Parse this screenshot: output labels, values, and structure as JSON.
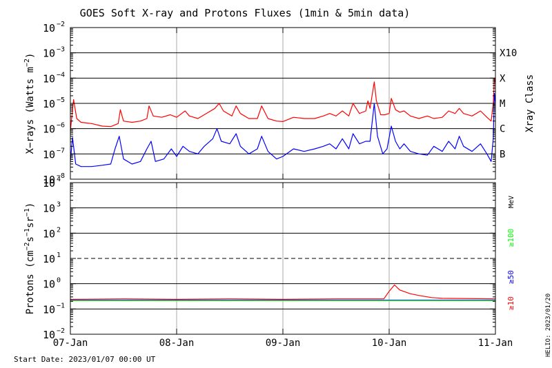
{
  "chart_data": {
    "type": "line",
    "title": "GOES Soft X-ray and Protons Fluxes   (1min & 5min data)",
    "start_date_label": "Start Date: 2023/01/07 00:00 UT",
    "credit_label": "HELIO: 2023/01/20",
    "x_ticks": [
      "07-Jan",
      "08-Jan",
      "09-Jan",
      "10-Jan",
      "11-Jan"
    ],
    "x_range_days": [
      0,
      4
    ],
    "colors": {
      "xray_long": "#ff0000",
      "xray_short": "#0000ff",
      "p10": "#ff0000",
      "p50": "#0000ff",
      "p100": "#00ff00",
      "grid": "#000000",
      "vgrid": "#aaaaaa"
    },
    "panels": [
      {
        "name": "xray",
        "ylabel": "X-rays (Watts m^-2)",
        "ylabel_parts": {
          "main": "X−rays (Watts m",
          "sup": "−2",
          "tail": ")"
        },
        "yscale": "log",
        "ylim_exp": [
          -8,
          -2
        ],
        "yticks": [
          {
            "base": "10",
            "exp": "−8",
            "value": -8
          },
          {
            "base": "10",
            "exp": "−7",
            "value": -7
          },
          {
            "base": "10",
            "exp": "−6",
            "value": -6
          },
          {
            "base": "10",
            "exp": "−5",
            "value": -5
          },
          {
            "base": "10",
            "exp": "−4",
            "value": -4
          },
          {
            "base": "10",
            "exp": "−3",
            "value": -3
          },
          {
            "base": "10",
            "exp": "−2",
            "value": -2
          }
        ],
        "hlines_solid_exp": [
          -7,
          -6,
          -5,
          -4,
          -3
        ],
        "right_axis_title": "Xray Class",
        "right_labels": [
          {
            "text": "X10",
            "value": -3.0
          },
          {
            "text": "X",
            "value": -4.0
          },
          {
            "text": "M",
            "value": -5.0
          },
          {
            "text": "C",
            "value": -6.0
          },
          {
            "text": "B",
            "value": -7.0
          }
        ],
        "series": [
          {
            "name": "xray_long",
            "color": "#ff0000",
            "note": "points are [day offset from 07-Jan, log10 flux]",
            "points": [
              [
                0,
                -6.1
              ],
              [
                0.03,
                -4.85
              ],
              [
                0.06,
                -5.6
              ],
              [
                0.1,
                -5.75
              ],
              [
                0.2,
                -5.8
              ],
              [
                0.3,
                -5.9
              ],
              [
                0.38,
                -5.92
              ],
              [
                0.45,
                -5.8
              ],
              [
                0.47,
                -5.25
              ],
              [
                0.5,
                -5.7
              ],
              [
                0.58,
                -5.75
              ],
              [
                0.66,
                -5.7
              ],
              [
                0.72,
                -5.6
              ],
              [
                0.74,
                -5.1
              ],
              [
                0.78,
                -5.5
              ],
              [
                0.86,
                -5.55
              ],
              [
                0.94,
                -5.45
              ],
              [
                1.0,
                -5.55
              ],
              [
                1.08,
                -5.3
              ],
              [
                1.12,
                -5.5
              ],
              [
                1.2,
                -5.6
              ],
              [
                1.26,
                -5.45
              ],
              [
                1.36,
                -5.2
              ],
              [
                1.4,
                -5.0
              ],
              [
                1.44,
                -5.3
              ],
              [
                1.52,
                -5.5
              ],
              [
                1.56,
                -5.1
              ],
              [
                1.6,
                -5.4
              ],
              [
                1.68,
                -5.6
              ],
              [
                1.76,
                -5.6
              ],
              [
                1.8,
                -5.1
              ],
              [
                1.86,
                -5.6
              ],
              [
                1.94,
                -5.7
              ],
              [
                2.0,
                -5.72
              ],
              [
                2.1,
                -5.55
              ],
              [
                2.2,
                -5.6
              ],
              [
                2.3,
                -5.6
              ],
              [
                2.38,
                -5.5
              ],
              [
                2.44,
                -5.4
              ],
              [
                2.5,
                -5.5
              ],
              [
                2.56,
                -5.3
              ],
              [
                2.62,
                -5.5
              ],
              [
                2.66,
                -5.0
              ],
              [
                2.72,
                -5.4
              ],
              [
                2.78,
                -5.3
              ],
              [
                2.8,
                -4.9
              ],
              [
                2.82,
                -5.2
              ],
              [
                2.86,
                -4.15
              ],
              [
                2.88,
                -4.9
              ],
              [
                2.92,
                -5.45
              ],
              [
                2.96,
                -5.45
              ],
              [
                3.0,
                -5.4
              ],
              [
                3.02,
                -4.8
              ],
              [
                3.06,
                -5.25
              ],
              [
                3.1,
                -5.35
              ],
              [
                3.14,
                -5.3
              ],
              [
                3.2,
                -5.5
              ],
              [
                3.28,
                -5.6
              ],
              [
                3.36,
                -5.5
              ],
              [
                3.42,
                -5.6
              ],
              [
                3.5,
                -5.55
              ],
              [
                3.56,
                -5.3
              ],
              [
                3.62,
                -5.4
              ],
              [
                3.66,
                -5.2
              ],
              [
                3.7,
                -5.4
              ],
              [
                3.78,
                -5.5
              ],
              [
                3.86,
                -5.3
              ],
              [
                3.92,
                -5.55
              ],
              [
                3.96,
                -5.7
              ],
              [
                3.98,
                -5.0
              ],
              [
                3.99,
                -4.0
              ],
              [
                4.0,
                -4.2
              ]
            ]
          },
          {
            "name": "xray_short",
            "color": "#0000ff",
            "note": "points are [day offset from 07-Jan, log10 flux]",
            "points": [
              [
                0,
                -7.3
              ],
              [
                0.02,
                -6.35
              ],
              [
                0.05,
                -7.4
              ],
              [
                0.1,
                -7.5
              ],
              [
                0.2,
                -7.5
              ],
              [
                0.3,
                -7.45
              ],
              [
                0.38,
                -7.4
              ],
              [
                0.42,
                -6.8
              ],
              [
                0.46,
                -6.3
              ],
              [
                0.5,
                -7.2
              ],
              [
                0.58,
                -7.4
              ],
              [
                0.66,
                -7.3
              ],
              [
                0.72,
                -6.8
              ],
              [
                0.76,
                -6.5
              ],
              [
                0.8,
                -7.3
              ],
              [
                0.88,
                -7.2
              ],
              [
                0.95,
                -6.8
              ],
              [
                1.0,
                -7.1
              ],
              [
                1.06,
                -6.7
              ],
              [
                1.12,
                -6.9
              ],
              [
                1.2,
                -7.0
              ],
              [
                1.26,
                -6.7
              ],
              [
                1.34,
                -6.4
              ],
              [
                1.38,
                -6.0
              ],
              [
                1.42,
                -6.5
              ],
              [
                1.5,
                -6.6
              ],
              [
                1.56,
                -6.2
              ],
              [
                1.6,
                -6.7
              ],
              [
                1.68,
                -7.0
              ],
              [
                1.76,
                -6.8
              ],
              [
                1.8,
                -6.3
              ],
              [
                1.86,
                -6.9
              ],
              [
                1.94,
                -7.2
              ],
              [
                2.0,
                -7.1
              ],
              [
                2.1,
                -6.8
              ],
              [
                2.2,
                -6.9
              ],
              [
                2.3,
                -6.8
              ],
              [
                2.38,
                -6.7
              ],
              [
                2.44,
                -6.6
              ],
              [
                2.5,
                -6.8
              ],
              [
                2.56,
                -6.4
              ],
              [
                2.62,
                -6.8
              ],
              [
                2.66,
                -6.2
              ],
              [
                2.72,
                -6.6
              ],
              [
                2.78,
                -6.5
              ],
              [
                2.82,
                -6.5
              ],
              [
                2.86,
                -5.0
              ],
              [
                2.89,
                -6.3
              ],
              [
                2.94,
                -7.0
              ],
              [
                2.98,
                -6.8
              ],
              [
                3.02,
                -5.9
              ],
              [
                3.06,
                -6.5
              ],
              [
                3.1,
                -6.8
              ],
              [
                3.14,
                -6.6
              ],
              [
                3.2,
                -6.9
              ],
              [
                3.28,
                -7.0
              ],
              [
                3.36,
                -7.05
              ],
              [
                3.42,
                -6.7
              ],
              [
                3.5,
                -6.9
              ],
              [
                3.56,
                -6.5
              ],
              [
                3.62,
                -6.8
              ],
              [
                3.66,
                -6.3
              ],
              [
                3.7,
                -6.7
              ],
              [
                3.78,
                -6.9
              ],
              [
                3.86,
                -6.6
              ],
              [
                3.92,
                -7.0
              ],
              [
                3.96,
                -7.3
              ],
              [
                3.98,
                -6.4
              ],
              [
                3.99,
                -4.6
              ],
              [
                4.0,
                -5.0
              ]
            ]
          }
        ]
      },
      {
        "name": "protons",
        "ylabel": "Protons (cm^-2 s^-1 sr^-1)",
        "ylabel_parts": {
          "main": "Protons (cm",
          "sup1": "−2",
          "mid1": "s",
          "sup2": "−1",
          "mid2": "sr",
          "sup3": "−1",
          "tail": ")"
        },
        "yscale": "log",
        "ylim_exp": [
          -2,
          4
        ],
        "yticks": [
          {
            "base": "10",
            "exp": "−2",
            "value": -2
          },
          {
            "base": "10",
            "exp": "−1",
            "value": -1
          },
          {
            "base": "10",
            "exp": "0",
            "value": 0
          },
          {
            "base": "10",
            "exp": "1",
            "value": 1
          },
          {
            "base": "10",
            "exp": "2",
            "value": 2
          },
          {
            "base": "10",
            "exp": "3",
            "value": 3
          },
          {
            "base": "10",
            "exp": "4",
            "value": 4
          }
        ],
        "hlines_solid_exp": [
          -1,
          0,
          2,
          3
        ],
        "hline_dashed_exp": 1,
        "right_units": "MeV",
        "legend": [
          {
            "text": "≥10",
            "color": "#ff0000"
          },
          {
            "text": "≥50",
            "color": "#0000ff"
          },
          {
            "text": "≥100",
            "color": "#00ff00"
          }
        ],
        "series": [
          {
            "name": "p10",
            "color": "#ff0000",
            "note": "points are [day offset from 07-Jan, log10 flux]",
            "points": [
              [
                0,
                -0.62
              ],
              [
                0.5,
                -0.6
              ],
              [
                1.0,
                -0.62
              ],
              [
                1.5,
                -0.6
              ],
              [
                2.0,
                -0.62
              ],
              [
                2.5,
                -0.6
              ],
              [
                2.95,
                -0.6
              ],
              [
                3.0,
                -0.3
              ],
              [
                3.05,
                -0.05
              ],
              [
                3.1,
                -0.25
              ],
              [
                3.2,
                -0.4
              ],
              [
                3.3,
                -0.48
              ],
              [
                3.4,
                -0.55
              ],
              [
                3.5,
                -0.58
              ],
              [
                4.0,
                -0.6
              ]
            ]
          },
          {
            "name": "p50",
            "color": "#0000ff",
            "note": "points are [day offset from 07-Jan, log10 flux]",
            "points": [
              [
                0,
                -0.65
              ],
              [
                4.0,
                -0.65
              ]
            ]
          },
          {
            "name": "p100",
            "color": "#00ff00",
            "note": "points are [day offset from 07-Jan, log10 flux]",
            "points": [
              [
                0,
                -0.67
              ],
              [
                4.0,
                -0.67
              ]
            ]
          }
        ]
      }
    ]
  }
}
